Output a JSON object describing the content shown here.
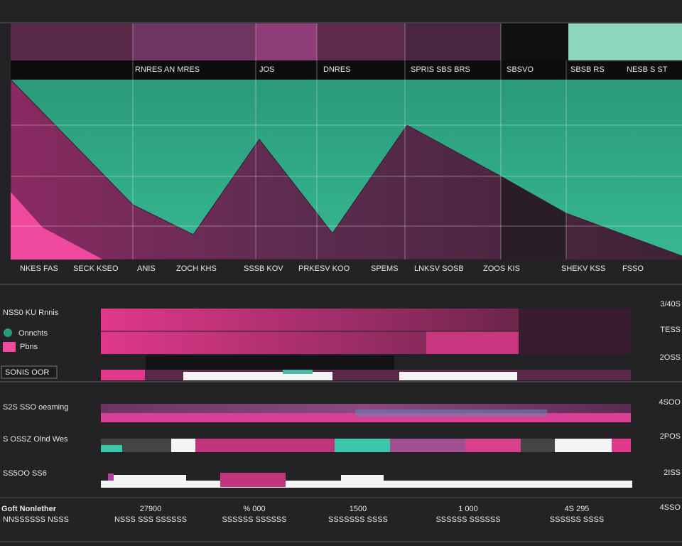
{
  "header": {
    "columns": [
      "RNRES AN MRES",
      "JOS",
      "DNRES",
      "SPRIS SBS BRS",
      "SBSVO",
      "SBSB RS",
      "NESB S ST"
    ]
  },
  "axis_labels": [
    "NKES FAS",
    "SECK KSEO",
    "ANIS",
    "ZOCH KHS",
    "SSSB KOV",
    "PRKESV KOO",
    "SPEMS",
    "LNKSV SOSB",
    "ZOOS KIS",
    "SHEKV KSS",
    "FSSO"
  ],
  "panel": {
    "title": "NSS0 KU Rnnis",
    "legend": [
      "Onnchts",
      "Pbns"
    ],
    "button": "SONIS OOR"
  },
  "right_labels": [
    "3/40S",
    "TESS",
    "2OSS",
    "4SOO",
    "2POS",
    "2ISS",
    "4SSO"
  ],
  "rows": [
    "S2S SSO oeaming",
    "S OSSZ Olnd Wes",
    "SS5OO SS6"
  ],
  "footer": {
    "title": "Goft Nonlether",
    "subtitle": "NNSSSSSS NSSS",
    "kpis": [
      {
        "value": "27900",
        "caption": "NSSS SSS SSSSSS"
      },
      {
        "value": "% 000",
        "caption": "SSSSSS SSSSSS"
      },
      {
        "value": "1500",
        "caption": "SSSSSSS SSSS"
      },
      {
        "value": "1 000",
        "caption": "SSSSSS SSSSSS"
      },
      {
        "value": "4S 295",
        "caption": "SSSSSS SSSS"
      }
    ]
  }
}
